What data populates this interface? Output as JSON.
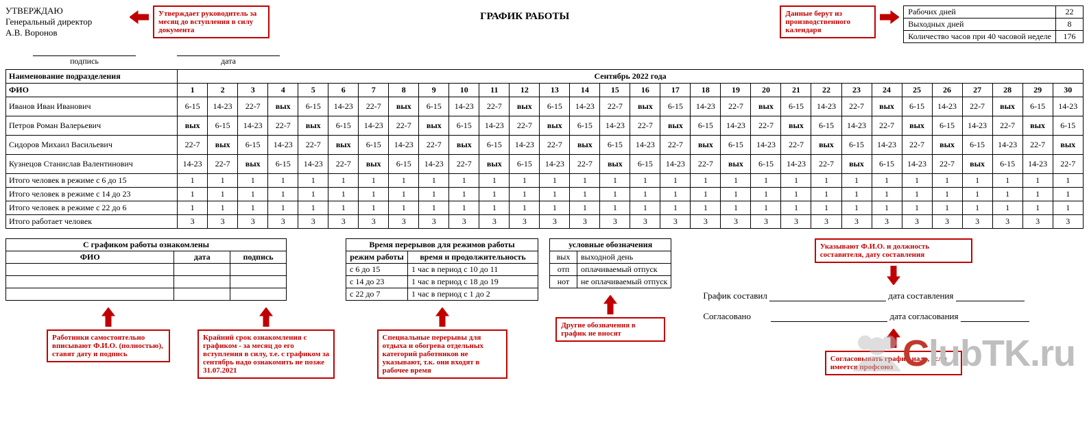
{
  "header": {
    "approve_line1": "УТВЕРЖДАЮ",
    "approve_line2": "Генеральный директор",
    "approve_line3": "А.В. Воронов",
    "title": "ГРАФИК РАБОТЫ",
    "sig_label1": "подпись",
    "sig_label2": "дата"
  },
  "callouts": {
    "approve": "Утверждает руководитель за месяц до вступления в силу документа",
    "calendar": "Данные берут из производственного календаря",
    "compiler": "Указывают Ф.И.О. и должность составителя, дату составления",
    "workers": "Работники самостоятельно вписывают Ф.И.О. (полностью), ставят дату и подпись",
    "deadline": "Крайний срок ознакомления с графиком - за месяц до его вступления в силу, т.е. с графиком за сентябрь надо ознакомить не позже 31.07.2021",
    "breaks": "Специальные перерывы для отдыха и обогрева отдельных категорий работников не указывают, т.к. они входят в рабочее время",
    "legend": "Другие обозначения в график не вносят",
    "union": "Согласовывать график надо, если имеется профсоюз"
  },
  "summary": {
    "row1_label": "Рабочих дней",
    "row1_val": "22",
    "row2_label": "Выходных дней",
    "row2_val": "8",
    "row3_label": "Количество часов при 40 часовой неделе",
    "row3_val": "176"
  },
  "schedule": {
    "dept_header": "Наименование подразделения",
    "month_header": "Сентябрь 2022 года",
    "fio_header": "ФИО",
    "days": [
      "1",
      "2",
      "3",
      "4",
      "5",
      "6",
      "7",
      "8",
      "9",
      "10",
      "11",
      "12",
      "13",
      "14",
      "15",
      "16",
      "17",
      "18",
      "19",
      "20",
      "21",
      "22",
      "23",
      "24",
      "25",
      "26",
      "27",
      "28",
      "29",
      "30"
    ],
    "employees": [
      {
        "name": "Иванов Иван Иванович",
        "shifts": [
          "6-15",
          "14-23",
          "22-7",
          "вых",
          "6-15",
          "14-23",
          "22-7",
          "вых",
          "6-15",
          "14-23",
          "22-7",
          "вых",
          "6-15",
          "14-23",
          "22-7",
          "вых",
          "6-15",
          "14-23",
          "22-7",
          "вых",
          "6-15",
          "14-23",
          "22-7",
          "вых",
          "6-15",
          "14-23",
          "22-7",
          "вых",
          "6-15",
          "14-23"
        ]
      },
      {
        "name": "Петров Роман Валерьевич",
        "shifts": [
          "вых",
          "6-15",
          "14-23",
          "22-7",
          "вых",
          "6-15",
          "14-23",
          "22-7",
          "вых",
          "6-15",
          "14-23",
          "22-7",
          "вых",
          "6-15",
          "14-23",
          "22-7",
          "вых",
          "6-15",
          "14-23",
          "22-7",
          "вых",
          "6-15",
          "14-23",
          "22-7",
          "вых",
          "6-15",
          "14-23",
          "22-7",
          "вых",
          "6-15"
        ]
      },
      {
        "name": "Сидоров Михаил Васильевич",
        "shifts": [
          "22-7",
          "вых",
          "6-15",
          "14-23",
          "22-7",
          "вых",
          "6-15",
          "14-23",
          "22-7",
          "вых",
          "6-15",
          "14-23",
          "22-7",
          "вых",
          "6-15",
          "14-23",
          "22-7",
          "вых",
          "6-15",
          "14-23",
          "22-7",
          "вых",
          "6-15",
          "14-23",
          "22-7",
          "вых",
          "6-15",
          "14-23",
          "22-7",
          "вых"
        ]
      },
      {
        "name": "Кузнецов Станислав Валентинович",
        "shifts": [
          "14-23",
          "22-7",
          "вых",
          "6-15",
          "14-23",
          "22-7",
          "вых",
          "6-15",
          "14-23",
          "22-7",
          "вых",
          "6-15",
          "14-23",
          "22-7",
          "вых",
          "6-15",
          "14-23",
          "22-7",
          "вых",
          "6-15",
          "14-23",
          "22-7",
          "вых",
          "6-15",
          "14-23",
          "22-7",
          "вых",
          "6-15",
          "14-23",
          "22-7"
        ]
      }
    ],
    "totals": [
      {
        "label": "Итого человек в режиме с 6 до 15",
        "vals": [
          "1",
          "1",
          "1",
          "1",
          "1",
          "1",
          "1",
          "1",
          "1",
          "1",
          "1",
          "1",
          "1",
          "1",
          "1",
          "1",
          "1",
          "1",
          "1",
          "1",
          "1",
          "1",
          "1",
          "1",
          "1",
          "1",
          "1",
          "1",
          "1",
          "1"
        ]
      },
      {
        "label": "Итого человек в режиме с 14 до 23",
        "vals": [
          "1",
          "1",
          "1",
          "1",
          "1",
          "1",
          "1",
          "1",
          "1",
          "1",
          "1",
          "1",
          "1",
          "1",
          "1",
          "1",
          "1",
          "1",
          "1",
          "1",
          "1",
          "1",
          "1",
          "1",
          "1",
          "1",
          "1",
          "1",
          "1",
          "1"
        ]
      },
      {
        "label": "Итого человек в режиме с 22 до 6",
        "vals": [
          "1",
          "1",
          "1",
          "1",
          "1",
          "1",
          "1",
          "1",
          "1",
          "1",
          "1",
          "1",
          "1",
          "1",
          "1",
          "1",
          "1",
          "1",
          "1",
          "1",
          "1",
          "1",
          "1",
          "1",
          "1",
          "1",
          "1",
          "1",
          "1",
          "1"
        ]
      },
      {
        "label": "Итого работает человек",
        "vals": [
          "3",
          "3",
          "3",
          "3",
          "3",
          "3",
          "3",
          "3",
          "3",
          "3",
          "3",
          "3",
          "3",
          "3",
          "3",
          "3",
          "3",
          "3",
          "3",
          "3",
          "3",
          "3",
          "3",
          "3",
          "3",
          "3",
          "3",
          "3",
          "3",
          "3"
        ]
      }
    ]
  },
  "ack": {
    "title": "С графиком работы ознакомлены",
    "col1": "ФИО",
    "col2": "дата",
    "col3": "подпись"
  },
  "breaks": {
    "title": "Время перерывов для режимов работы",
    "col1": "режим работы",
    "col2": "время и продолжительность",
    "rows": [
      {
        "mode": "с 6 до 15",
        "time": "1 час в период с 10 до 11"
      },
      {
        "mode": "с 14 до 23",
        "time": "1 час в период с 18 до 19"
      },
      {
        "mode": "с 22 до 7",
        "time": "1 час в период с 1 до 2"
      }
    ]
  },
  "legend": {
    "title": "условные обозначения",
    "rows": [
      {
        "code": "вых",
        "desc": "выходной день"
      },
      {
        "code": "отп",
        "desc": "оплачиваемый отпуск"
      },
      {
        "code": "нот",
        "desc": "не оплачиваемый отпуск"
      }
    ]
  },
  "signoff": {
    "line1_label": "График составил",
    "line1_after": "дата составления",
    "line2_label": "Согласовано",
    "line2_after": "дата согласования"
  },
  "watermark": {
    "c": "C",
    "rest": "lubTK.ru"
  },
  "colors": {
    "callout": "#c00000",
    "border": "#000000",
    "bg": "#ffffff",
    "watermark_gray": "#bfbfbf",
    "watermark_red": "#c0392b"
  }
}
